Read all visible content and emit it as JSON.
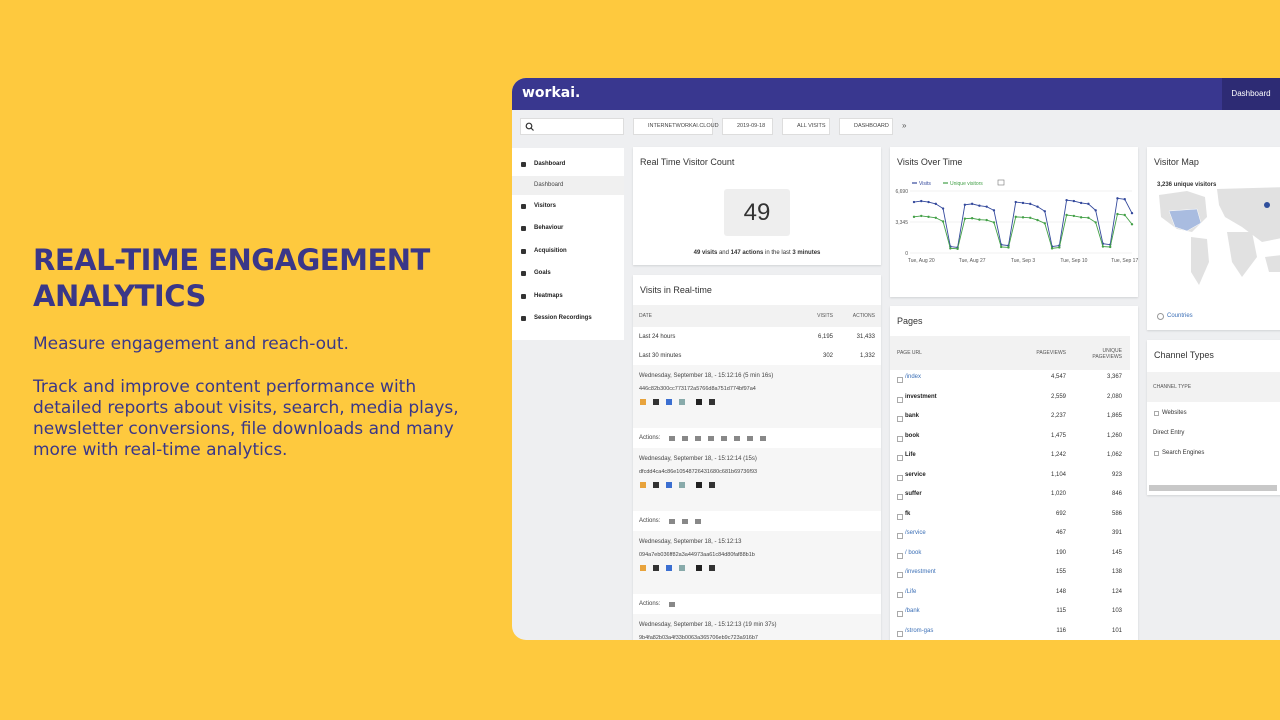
{
  "hero": {
    "title": "REAL-TIME ENGAGEMENT ANALYTICS",
    "subtitle": "Measure engagement and reach-out.",
    "body": "Track and improve content performance with detailed reports about visits, search, media plays, newsletter conversions, file downloads and many more with real-time analytics."
  },
  "app": {
    "logo": "workai.",
    "nav_tab": "Dashboard",
    "toolbar": [
      "INTERNETWORKAI.CLOUD",
      "2019-09-18",
      "ALL VISITS",
      "DASHBOARD"
    ],
    "sidebar": [
      "Dashboard",
      "Visitors",
      "Behaviour",
      "Acquisition",
      "Goals",
      "Heatmaps",
      "Session Recordings"
    ],
    "sidebar_sub": "Dashboard"
  },
  "realtime_count": {
    "title": "Real Time Visitor Count",
    "value": "49",
    "summary": [
      "49 visits",
      " and ",
      "147 actions",
      " in the last ",
      "3 minutes"
    ]
  },
  "visits_realtime": {
    "title": "Visits in Real-time",
    "headers": [
      "DATE",
      "VISITS",
      "ACTIONS"
    ],
    "rows": [
      [
        "Last 24 hours",
        "6,195",
        "31,433"
      ],
      [
        "Last 30 minutes",
        "302",
        "1,332"
      ]
    ],
    "actions_label": "Actions:",
    "visits": [
      {
        "time": "Wednesday, September 18, - 15:12:16 (5 min 16s)",
        "id": "446c82b300cc773172a5766d8a751d774bf97a4"
      },
      {
        "time": "Wednesday, September 18, - 15:12:14 (15s)",
        "id": "dfcdd4ca4c86e10548726431680c681b69736f93"
      },
      {
        "time": "Wednesday, September 18, - 15:12:13",
        "id": "094a7eb036ff82a3a44973aa61c84d80faf88b1b"
      },
      {
        "time": "Wednesday, September 18, - 15:12:13 (19 min 37s)",
        "id": "9b4fa82b03a4f33b0063a365706eb9c723a916b7"
      }
    ]
  },
  "visits_over_time": {
    "title": "Visits Over Time",
    "type": "line",
    "categories": [
      null,
      "Tue, Aug 20",
      null,
      null,
      null,
      null,
      null,
      null,
      "Tue, Aug 27",
      null,
      null,
      null,
      null,
      null,
      null,
      "Tue, Sep 3",
      null,
      null,
      null,
      null,
      null,
      null,
      "Tue, Sep 10",
      null,
      null,
      null,
      null,
      null,
      null,
      "Tue, Sep 17",
      null
    ],
    "series": [
      {
        "name": "Visits",
        "color": "#34499c",
        "values": [
          5500,
          5600,
          5500,
          5300,
          4800,
          700,
          600,
          5200,
          5300,
          5100,
          5000,
          4600,
          900,
          800,
          5500,
          5400,
          5300,
          5000,
          4500,
          700,
          800,
          5700,
          5600,
          5400,
          5300,
          4600,
          1000,
          900,
          5900,
          5800,
          4300
        ]
      },
      {
        "name": "Unique visitors",
        "color": "#43a047",
        "values": [
          3900,
          4000,
          3900,
          3800,
          3400,
          500,
          450,
          3700,
          3750,
          3600,
          3550,
          3300,
          650,
          600,
          3900,
          3850,
          3800,
          3550,
          3200,
          500,
          600,
          4100,
          4000,
          3850,
          3800,
          3300,
          700,
          650,
          4200,
          4100,
          3100
        ]
      }
    ],
    "ylim": [
      0,
      6690
    ],
    "yticks": [
      0,
      {
        "value": 3345,
        "label": "3,345"
      },
      {
        "value": 6690,
        "label": "6,690"
      }
    ],
    "grid": true
  },
  "pages": {
    "title": "Pages",
    "headers": [
      "PAGE URL",
      "PAGEVIEWS",
      "UNIQUE PAGEVIEWS"
    ],
    "rows": [
      [
        "/index",
        "4,547",
        "3,367"
      ],
      [
        "investment",
        "2,559",
        "2,080"
      ],
      [
        "bank",
        "2,237",
        "1,865"
      ],
      [
        "book",
        "1,475",
        "1,260"
      ],
      [
        "Life",
        "1,242",
        "1,062"
      ],
      [
        "service",
        "1,104",
        "923"
      ],
      [
        "suffer",
        "1,020",
        "846"
      ],
      [
        "fk",
        "692",
        "586"
      ],
      [
        "/service",
        "467",
        "391"
      ],
      [
        "/ book",
        "190",
        "145"
      ],
      [
        "/investment",
        "155",
        "138"
      ],
      [
        "/Life",
        "148",
        "124"
      ],
      [
        "/bank",
        "115",
        "103"
      ],
      [
        "/strom-gas",
        "116",
        "101"
      ]
    ]
  },
  "visitor_map": {
    "title": "Visitor Map",
    "summary": "3,236 unique visitors",
    "link": "Countries"
  },
  "channel_types": {
    "title": "Channel Types",
    "header": "CHANNEL TYPE",
    "rows": [
      "Websites",
      "Direct Entry",
      "Search Engines"
    ]
  }
}
